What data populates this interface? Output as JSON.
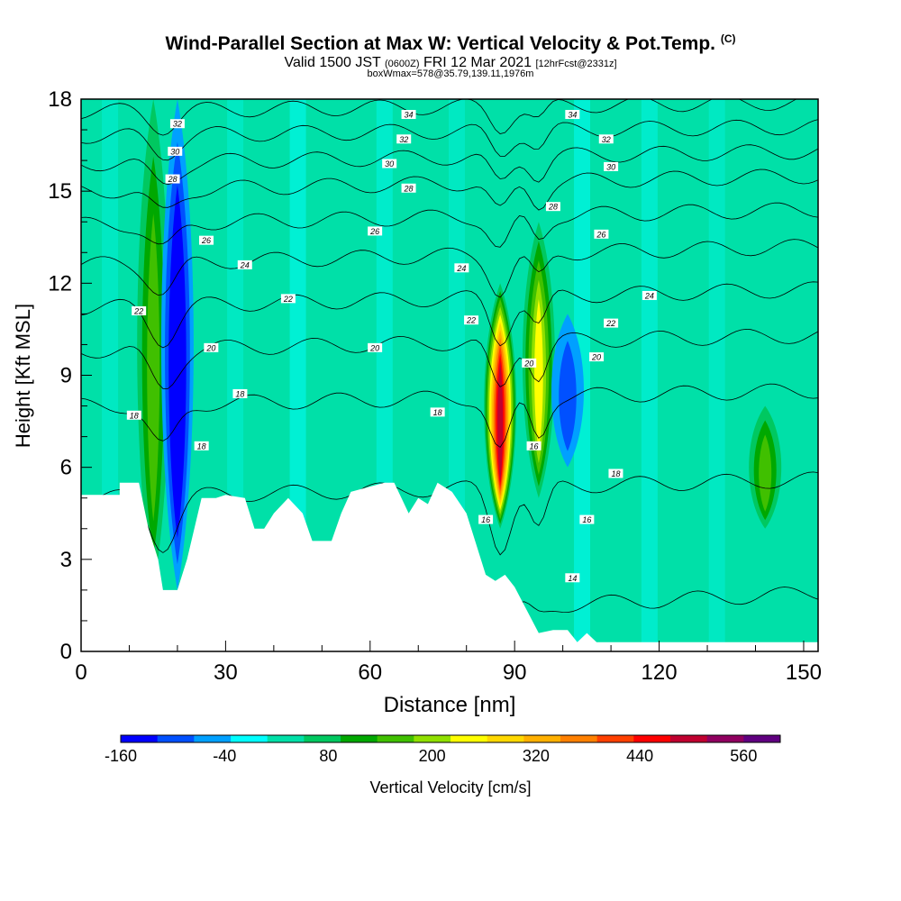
{
  "title": "Wind-Parallel Section at Max W: Vertical Velocity & Pot.Temp.",
  "copyright": "(C)",
  "subtitle_main_a": "Valid 1500 JST",
  "subtitle_small_a": "(0600Z)",
  "subtitle_main_b": "FRI 12 Mar 2021",
  "subtitle_small_b": "[12hrFcst@2331z]",
  "subtitle_2": "boxWmax=578@35.79,139.11,1976m",
  "chart_data": {
    "type": "heatmap",
    "xlabel": "Distance [nm]",
    "ylabel": "Height [Kft MSL]",
    "xlim": [
      0,
      153
    ],
    "ylim": [
      0,
      18
    ],
    "xticks": [
      0,
      30,
      60,
      90,
      120,
      150
    ],
    "yticks": [
      0,
      3,
      6,
      9,
      12,
      15,
      18
    ],
    "colorbar": {
      "label": "Vertical Velocity [cm/s]",
      "boundaries": [
        -200,
        -160,
        -120,
        -80,
        -40,
        0,
        40,
        80,
        120,
        160,
        200,
        240,
        280,
        320,
        360,
        400,
        440,
        480,
        520,
        560,
        600
      ],
      "tick_values": [
        -160,
        -40,
        80,
        200,
        320,
        440,
        560
      ],
      "colors": [
        "#0000ff",
        "#0050ff",
        "#00a0ff",
        "#00ffff",
        "#00e0a8",
        "#00c860",
        "#00a800",
        "#40c000",
        "#90e000",
        "#ffff00",
        "#ffd800",
        "#ffb000",
        "#ff8000",
        "#ff4000",
        "#ff0000",
        "#c00030",
        "#900060",
        "#600080"
      ]
    },
    "velocity_features": [
      {
        "x": 15,
        "z_bottom": 2,
        "z_top": 18,
        "w": 120
      },
      {
        "x": 20,
        "z_bottom": 2,
        "z_top": 18,
        "w": -160
      },
      {
        "x": 87,
        "z_bottom": 4,
        "z_top": 12,
        "w": 440
      },
      {
        "x": 95,
        "z_bottom": 5,
        "z_top": 14,
        "w": 200
      },
      {
        "x": 101,
        "z_bottom": 6,
        "z_top": 11,
        "w": -80
      },
      {
        "x": 142,
        "z_bottom": 4,
        "z_top": 8,
        "w": 120
      }
    ],
    "terrain": [
      [
        0,
        5.1
      ],
      [
        8,
        5.1
      ],
      [
        8,
        5.5
      ],
      [
        12,
        5.5
      ],
      [
        14,
        4
      ],
      [
        16,
        3
      ],
      [
        17,
        2
      ],
      [
        20,
        2
      ],
      [
        22,
        3
      ],
      [
        25,
        5
      ],
      [
        28,
        5
      ],
      [
        30,
        5.1
      ],
      [
        34,
        5
      ],
      [
        36,
        4
      ],
      [
        38,
        4
      ],
      [
        40,
        4.5
      ],
      [
        43,
        5
      ],
      [
        46,
        4.5
      ],
      [
        48,
        3.6
      ],
      [
        52,
        3.6
      ],
      [
        54,
        4.5
      ],
      [
        56,
        5.2
      ],
      [
        63,
        5.5
      ],
      [
        65,
        5.5
      ],
      [
        68,
        4.5
      ],
      [
        70,
        5
      ],
      [
        72,
        4.8
      ],
      [
        74,
        5.5
      ],
      [
        77,
        5.2
      ],
      [
        80,
        4.5
      ],
      [
        82,
        3.5
      ],
      [
        84,
        2.5
      ],
      [
        86,
        2.3
      ],
      [
        88,
        2.5
      ],
      [
        90,
        2.1
      ],
      [
        93,
        1.2
      ],
      [
        95,
        0.6
      ],
      [
        98,
        0.7
      ],
      [
        101,
        0.7
      ],
      [
        103,
        0.3
      ],
      [
        105,
        0.6
      ],
      [
        107,
        0.3
      ],
      [
        153,
        0.3
      ]
    ],
    "isentropes": [
      {
        "label": "14",
        "z_left": 0.8,
        "z_right": 1.9,
        "dip": 0.4
      },
      {
        "label": "16",
        "z_left": 5.0,
        "z_right": 5.6,
        "dip": 2.0
      },
      {
        "label": "18",
        "z_left": 8.0,
        "z_right": 8.5,
        "dip": 1.8
      },
      {
        "label": "20",
        "z_left": 9.8,
        "z_right": 10.3,
        "dip": 1.6
      },
      {
        "label": "22",
        "z_left": 11.2,
        "z_right": 11.8,
        "dip": 1.4
      },
      {
        "label": "24",
        "z_left": 12.6,
        "z_right": 13.2,
        "dip": 1.2
      },
      {
        "label": "26",
        "z_left": 13.9,
        "z_right": 14.4,
        "dip": 1.1
      },
      {
        "label": "28",
        "z_left": 15.0,
        "z_right": 15.5,
        "dip": 1.0
      },
      {
        "label": "30",
        "z_left": 15.9,
        "z_right": 16.3,
        "dip": 0.9
      },
      {
        "label": "32",
        "z_left": 16.8,
        "z_right": 17.1,
        "dip": 0.8
      },
      {
        "label": "34",
        "z_left": 17.6,
        "z_right": 17.9,
        "dip": 0.7
      }
    ],
    "contour_labels": [
      {
        "text": "32",
        "x": 20,
        "z": 17.2
      },
      {
        "text": "30",
        "x": 19.5,
        "z": 16.3
      },
      {
        "text": "28",
        "x": 19,
        "z": 15.4
      },
      {
        "text": "26",
        "x": 26,
        "z": 13.4
      },
      {
        "text": "24",
        "x": 34,
        "z": 12.6
      },
      {
        "text": "22",
        "x": 12,
        "z": 11.1
      },
      {
        "text": "22",
        "x": 43,
        "z": 11.5
      },
      {
        "text": "20",
        "x": 27,
        "z": 9.9
      },
      {
        "text": "18",
        "x": 33,
        "z": 8.4
      },
      {
        "text": "18",
        "x": 11,
        "z": 7.7
      },
      {
        "text": "18",
        "x": 25,
        "z": 6.7
      },
      {
        "text": "34",
        "x": 68,
        "z": 17.5
      },
      {
        "text": "32",
        "x": 67,
        "z": 16.7
      },
      {
        "text": "30",
        "x": 64,
        "z": 15.9
      },
      {
        "text": "28",
        "x": 68,
        "z": 15.1
      },
      {
        "text": "26",
        "x": 61,
        "z": 13.7
      },
      {
        "text": "24",
        "x": 79,
        "z": 12.5
      },
      {
        "text": "22",
        "x": 81,
        "z": 10.8
      },
      {
        "text": "20",
        "x": 61,
        "z": 9.9
      },
      {
        "text": "18",
        "x": 74,
        "z": 7.8
      },
      {
        "text": "16",
        "x": 84,
        "z": 4.3
      },
      {
        "text": "20",
        "x": 93,
        "z": 9.4
      },
      {
        "text": "16",
        "x": 94,
        "z": 6.7
      },
      {
        "text": "28",
        "x": 98,
        "z": 14.5
      },
      {
        "text": "34",
        "x": 102,
        "z": 17.5
      },
      {
        "text": "32",
        "x": 109,
        "z": 16.7
      },
      {
        "text": "30",
        "x": 110,
        "z": 15.8
      },
      {
        "text": "26",
        "x": 108,
        "z": 13.6
      },
      {
        "text": "24",
        "x": 118,
        "z": 11.6
      },
      {
        "text": "22",
        "x": 110,
        "z": 10.7
      },
      {
        "text": "20",
        "x": 107,
        "z": 9.6
      },
      {
        "text": "18",
        "x": 111,
        "z": 5.8
      },
      {
        "text": "16",
        "x": 105,
        "z": 4.3
      },
      {
        "text": "14",
        "x": 102,
        "z": 2.4
      }
    ]
  }
}
